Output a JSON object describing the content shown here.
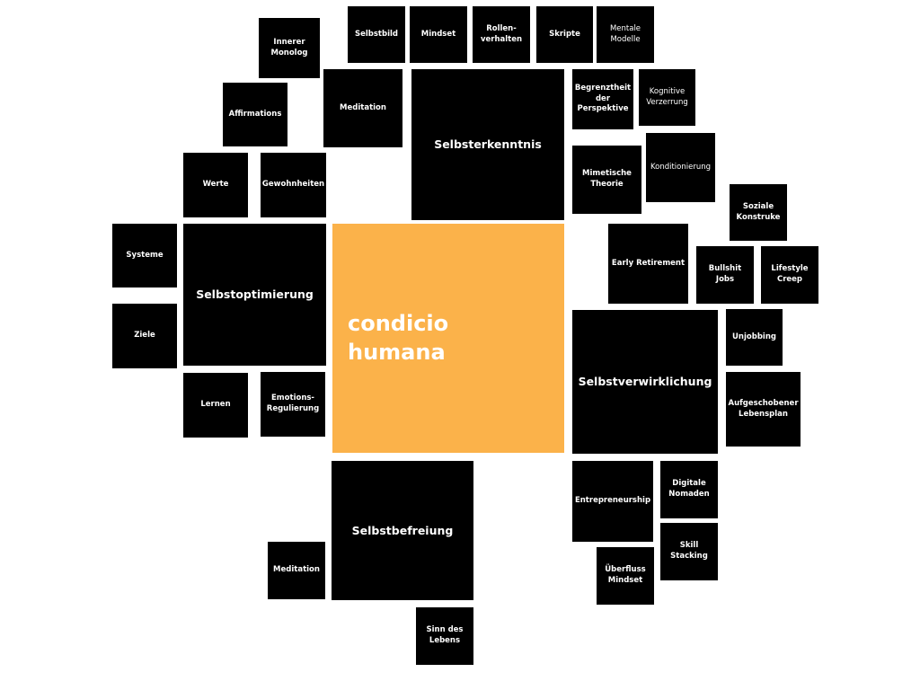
{
  "colors": {
    "background": "#ffffff",
    "node_fill": "#000000",
    "node_text": "#ffffff",
    "center_fill": "#fbb24a",
    "center_text": "#ffffff"
  },
  "center": {
    "label": "condicio\nhumana"
  },
  "hubs": {
    "selbsterkenntnis": "Selbsterkenntnis",
    "selbstoptimierung": "Selbstoptimierung",
    "selbstverwirklichung": "Selbstverwirklichung",
    "selbstbefreiung": "Selbstbefreiung"
  },
  "topics": {
    "innerer_monolog": "Innerer\nMonolog",
    "selbstbild": "Selbstbild",
    "mindset": "Mindset",
    "rollenverhalten": "Rollen-\nverhalten",
    "skripte": "Skripte",
    "mentale_modelle": "Mentale\nModelle",
    "affirmations": "Affirmations",
    "meditation_top": "Meditation",
    "begrenztheit": "Begrenztheit\nder\nPerspektive",
    "kognitive_verzerrung": "Kognitive\nVerzerrung",
    "werte": "Werte",
    "gewohnheiten": "Gewohnheiten",
    "mimetische_theorie": "Mimetische\nTheorie",
    "konditionierung": "Konditionierung",
    "soziale_konstruke": "Soziale\nKonstruke",
    "systeme": "Systeme",
    "early_retirement": "Early Retirement",
    "bullshit_jobs": "Bullshit\nJobs",
    "lifestyle_creep": "Lifestyle\nCreep",
    "ziele": "Ziele",
    "unjobbing": "Unjobbing",
    "aufgeschobener_lebensplan": "Aufgeschobener\nLebensplan",
    "lernen": "Lernen",
    "emotions_regulierung": "Emotions-\nRegulierung",
    "entrepreneurship": "Entrepreneurship",
    "digitale_nomaden": "Digitale\nNomaden",
    "skill_stacking": "Skill\nStacking",
    "meditation_bottom": "Meditation",
    "ueberfluss_mindset": "Überfluss\nMindset",
    "sinn_des_lebens": "Sinn des\nLebens"
  }
}
